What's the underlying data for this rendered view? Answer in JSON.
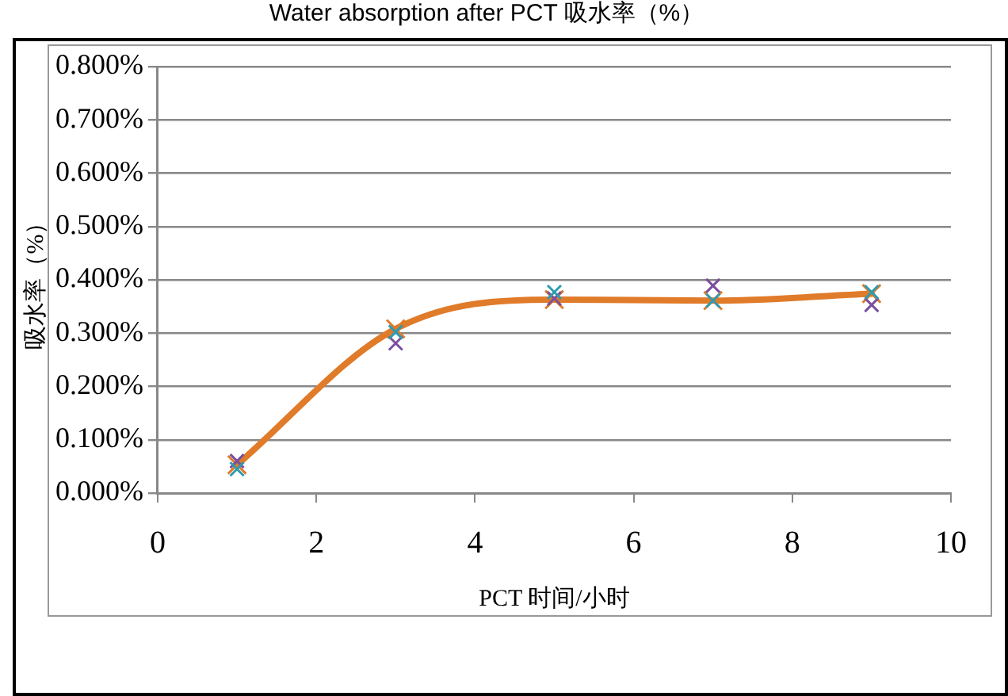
{
  "chart_data": {
    "type": "scatter",
    "title": "Water absorption after PCT 吸水率（%）",
    "xlabel": "PCT 时间/小时",
    "ylabel": "吸水率（%）",
    "x": [
      1,
      3,
      5,
      7,
      9
    ],
    "series": [
      {
        "type": "line",
        "color": "#e07b2a",
        "marker": "cross",
        "values": [
          0.053,
          0.308,
          0.363,
          0.361,
          0.374
        ]
      },
      {
        "color": "#2e9bb0",
        "marker": "cross",
        "values": [
          0.045,
          0.302,
          0.377,
          0.361,
          0.377
        ]
      },
      {
        "color": "#7a4f9e",
        "marker": "cross",
        "values": [
          0.06,
          0.281,
          0.365,
          0.389,
          0.353
        ]
      }
    ],
    "xlim": [
      0,
      10
    ],
    "xticks": [
      0,
      2,
      4,
      6,
      8,
      10
    ],
    "ylim": [
      0,
      0.8
    ],
    "yticks": [
      {
        "value": 0,
        "label": "0.000%"
      },
      {
        "value": 0.1,
        "label": "0.100%"
      },
      {
        "value": 0.2,
        "label": "0.200%"
      },
      {
        "value": 0.3,
        "label": "0.300%"
      },
      {
        "value": 0.4,
        "label": "0.400%"
      },
      {
        "value": 0.5,
        "label": "0.500%"
      },
      {
        "value": 0.6,
        "label": "0.600%"
      },
      {
        "value": 0.7,
        "label": "0.700%"
      },
      {
        "value": 0.8,
        "label": "0.800%"
      }
    ],
    "grid": "y",
    "legend": false
  }
}
